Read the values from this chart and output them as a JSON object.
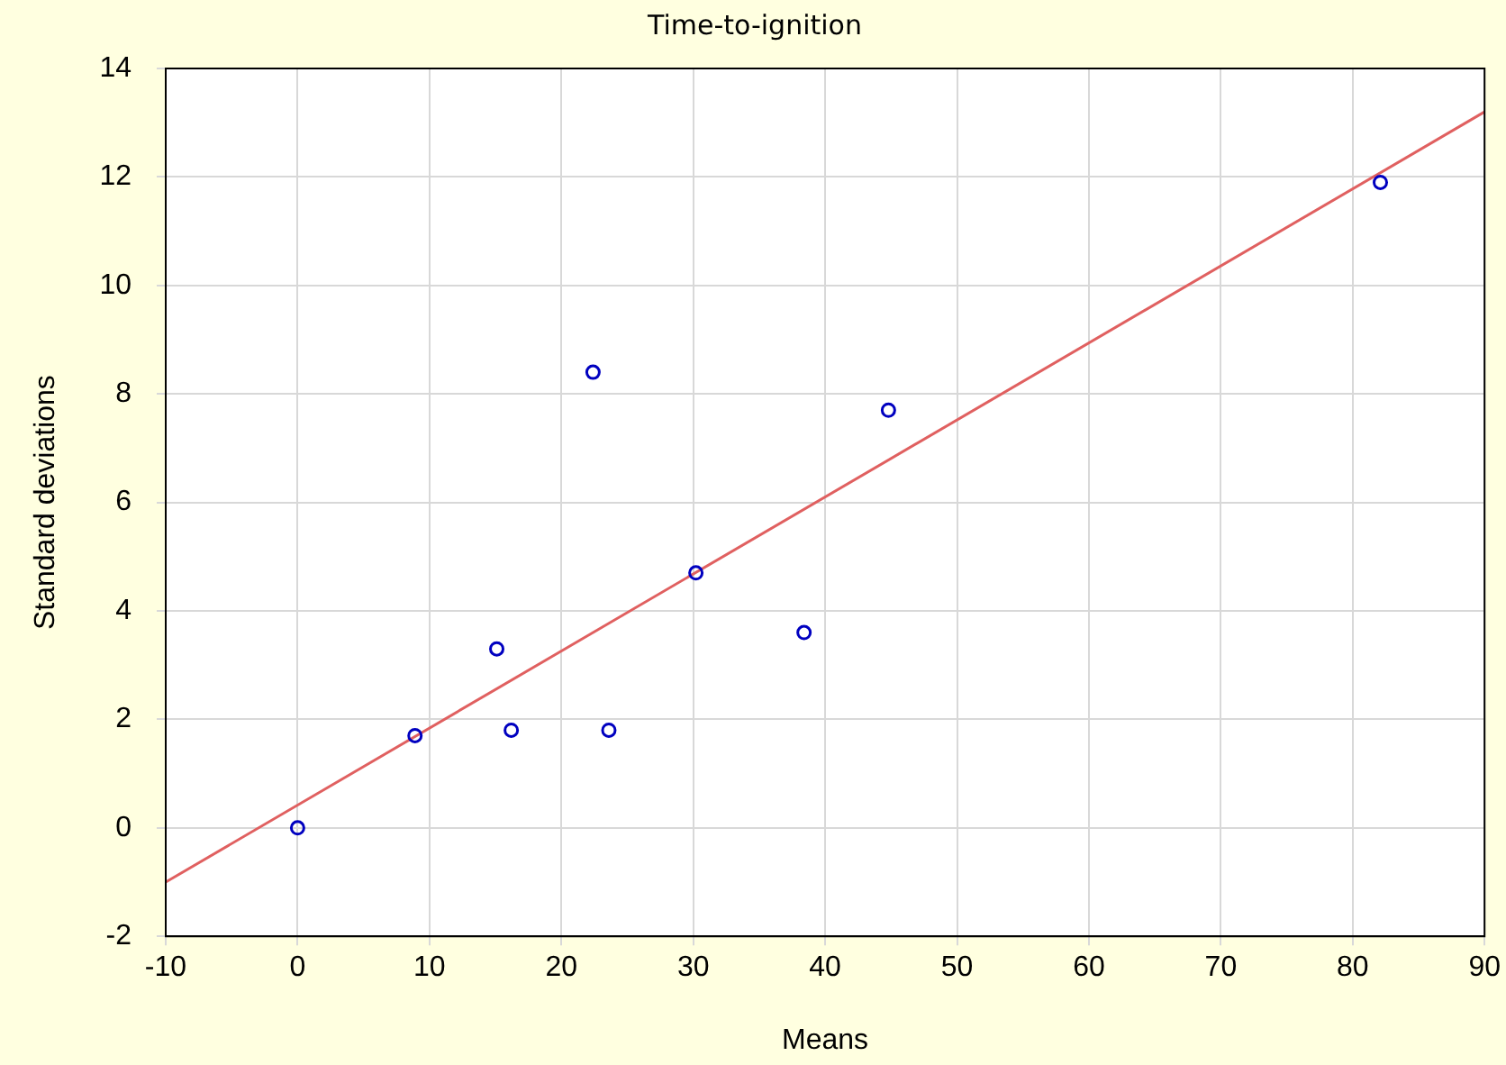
{
  "chart_data": {
    "type": "scatter",
    "title": "Time-to-ignition",
    "xlabel": "Means",
    "ylabel": "Standard deviations",
    "xlim": [
      -10,
      90
    ],
    "xticks": [
      -10,
      0,
      10,
      20,
      30,
      40,
      50,
      60,
      70,
      80,
      90
    ],
    "ylim": [
      -2,
      14
    ],
    "yticks": [
      -2,
      0,
      2,
      4,
      6,
      8,
      10,
      12,
      14
    ],
    "grid": true,
    "legend": false,
    "marker": "circle",
    "series": [
      {
        "color": "#0000c0",
        "x": [
          0,
          8.9,
          15.1,
          16.2,
          22.4,
          23.6,
          30.2,
          38.4,
          44.8,
          82.1
        ],
        "values": [
          0,
          1.7,
          3.3,
          1.8,
          8.4,
          1.8,
          4.7,
          3.6,
          7.7,
          11.9
        ]
      },
      {
        "type": "line",
        "color": "#e06060",
        "x": [
          -10,
          90
        ],
        "values": [
          -1,
          13.2
        ],
        "marker": "none",
        "line_style": "solid"
      }
    ]
  }
}
